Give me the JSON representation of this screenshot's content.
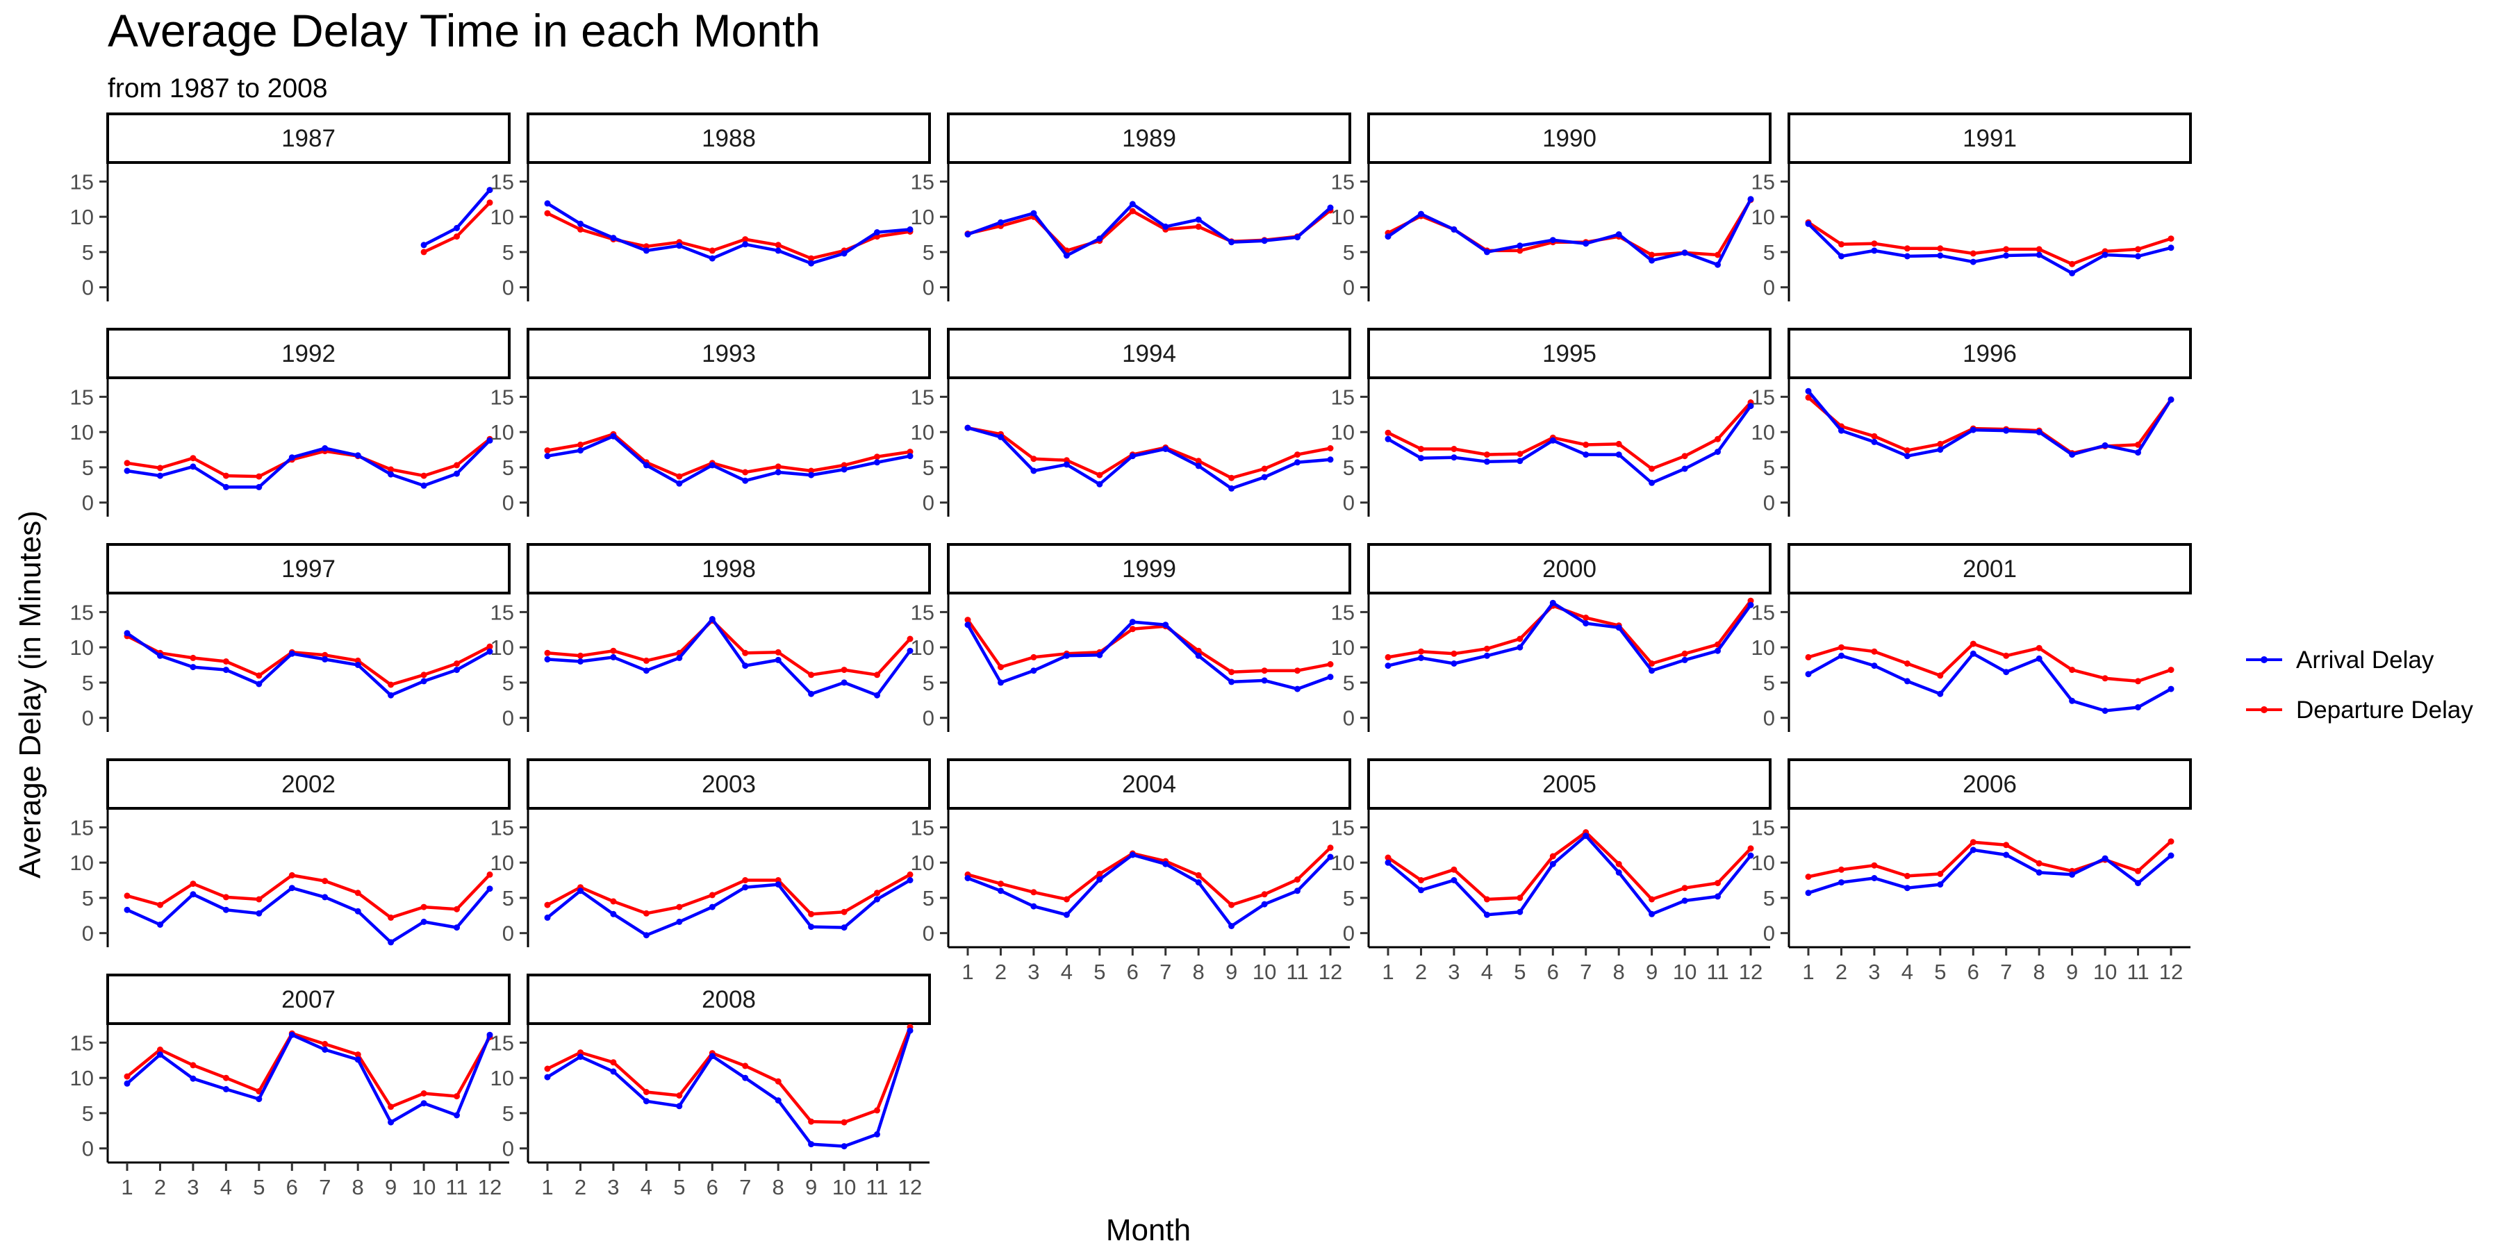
{
  "chart_data": {
    "type": "line",
    "title": "Average Delay Time in each Month",
    "subtitle": "from 1987 to 2008",
    "xlabel": "Month",
    "ylabel": "Average Delay (in Minutes)",
    "x": [
      1,
      2,
      3,
      4,
      5,
      6,
      7,
      8,
      9,
      10,
      11,
      12
    ],
    "ylim": [
      -2,
      17.5
    ],
    "yticks": [
      0,
      5,
      10,
      15
    ],
    "legend_position": "right",
    "grid": false,
    "series_colors": {
      "Arrival Delay": "#0000ff",
      "Departure Delay": "#ff0000"
    },
    "panels": [
      {
        "year": "1987",
        "series": [
          {
            "name": "Arrival Delay",
            "values": [
              null,
              null,
              null,
              null,
              null,
              null,
              null,
              null,
              null,
              6.0,
              8.4,
              13.8
            ]
          },
          {
            "name": "Departure Delay",
            "values": [
              null,
              null,
              null,
              null,
              null,
              null,
              null,
              null,
              null,
              5.0,
              7.2,
              12.0
            ]
          }
        ]
      },
      {
        "year": "1988",
        "series": [
          {
            "name": "Arrival Delay",
            "values": [
              11.9,
              9.0,
              7.0,
              5.2,
              5.9,
              4.1,
              6.1,
              5.2,
              3.4,
              4.8,
              7.8,
              8.2
            ]
          },
          {
            "name": "Departure Delay",
            "values": [
              10.5,
              8.2,
              6.8,
              5.8,
              6.4,
              5.2,
              6.8,
              6.0,
              4.1,
              5.2,
              7.2,
              7.9
            ]
          }
        ]
      },
      {
        "year": "1989",
        "series": [
          {
            "name": "Arrival Delay",
            "values": [
              7.5,
              9.2,
              10.5,
              4.5,
              6.9,
              11.8,
              8.6,
              9.6,
              6.4,
              6.6,
              7.1,
              11.3
            ]
          },
          {
            "name": "Departure Delay",
            "values": [
              7.6,
              8.7,
              10.0,
              5.2,
              6.6,
              10.8,
              8.2,
              8.6,
              6.5,
              6.7,
              7.2,
              10.9
            ]
          }
        ]
      },
      {
        "year": "1990",
        "series": [
          {
            "name": "Arrival Delay",
            "values": [
              7.2,
              10.4,
              8.2,
              5.0,
              5.9,
              6.7,
              6.2,
              7.5,
              3.8,
              4.9,
              3.2,
              12.5
            ]
          },
          {
            "name": "Departure Delay",
            "values": [
              7.7,
              10.1,
              8.2,
              5.2,
              5.2,
              6.4,
              6.4,
              7.2,
              4.6,
              4.9,
              4.6,
              12.4
            ]
          }
        ]
      },
      {
        "year": "1991",
        "series": [
          {
            "name": "Arrival Delay",
            "values": [
              9.0,
              4.4,
              5.2,
              4.4,
              4.5,
              3.6,
              4.5,
              4.6,
              2.0,
              4.6,
              4.4,
              5.6
            ]
          },
          {
            "name": "Departure Delay",
            "values": [
              9.2,
              6.1,
              6.2,
              5.5,
              5.5,
              4.8,
              5.4,
              5.4,
              3.3,
              5.1,
              5.4,
              6.9
            ]
          }
        ]
      },
      {
        "year": "1992",
        "series": [
          {
            "name": "Arrival Delay",
            "values": [
              4.5,
              3.8,
              5.1,
              2.2,
              2.2,
              6.4,
              7.7,
              6.7,
              4.0,
              2.4,
              4.1,
              8.8
            ]
          },
          {
            "name": "Departure Delay",
            "values": [
              5.6,
              4.9,
              6.3,
              3.8,
              3.7,
              6.1,
              7.3,
              6.6,
              4.7,
              3.8,
              5.3,
              9.0
            ]
          }
        ]
      },
      {
        "year": "1993",
        "series": [
          {
            "name": "Arrival Delay",
            "values": [
              6.6,
              7.4,
              9.4,
              5.3,
              2.7,
              5.3,
              3.1,
              4.3,
              3.9,
              4.7,
              5.7,
              6.6
            ]
          },
          {
            "name": "Departure Delay",
            "values": [
              7.4,
              8.2,
              9.7,
              5.7,
              3.7,
              5.6,
              4.3,
              5.1,
              4.5,
              5.3,
              6.5,
              7.2
            ]
          }
        ]
      },
      {
        "year": "1994",
        "series": [
          {
            "name": "Arrival Delay",
            "values": [
              10.6,
              9.3,
              4.5,
              5.4,
              2.6,
              6.6,
              7.6,
              5.2,
              2.0,
              3.6,
              5.7,
              6.1
            ]
          },
          {
            "name": "Departure Delay",
            "values": [
              10.6,
              9.7,
              6.2,
              6.0,
              3.9,
              6.8,
              7.8,
              5.9,
              3.5,
              4.8,
              6.8,
              7.7
            ]
          }
        ]
      },
      {
        "year": "1995",
        "series": [
          {
            "name": "Arrival Delay",
            "values": [
              9.0,
              6.3,
              6.4,
              5.8,
              5.9,
              8.8,
              6.8,
              6.8,
              2.8,
              4.8,
              7.2,
              13.7
            ]
          },
          {
            "name": "Departure Delay",
            "values": [
              9.9,
              7.6,
              7.6,
              6.8,
              6.9,
              9.2,
              8.2,
              8.3,
              4.8,
              6.6,
              9.0,
              14.2
            ]
          }
        ]
      },
      {
        "year": "1996",
        "series": [
          {
            "name": "Arrival Delay",
            "values": [
              15.8,
              10.2,
              8.6,
              6.6,
              7.5,
              10.3,
              10.2,
              10.0,
              6.8,
              8.1,
              7.1,
              14.6
            ]
          },
          {
            "name": "Departure Delay",
            "values": [
              14.9,
              10.8,
              9.4,
              7.4,
              8.3,
              10.5,
              10.4,
              10.2,
              7.0,
              8.0,
              8.2,
              14.6
            ]
          }
        ]
      },
      {
        "year": "1997",
        "series": [
          {
            "name": "Arrival Delay",
            "values": [
              12.0,
              8.8,
              7.2,
              6.8,
              4.8,
              9.1,
              8.3,
              7.5,
              3.2,
              5.2,
              6.8,
              9.4
            ]
          },
          {
            "name": "Departure Delay",
            "values": [
              11.6,
              9.2,
              8.5,
              8.0,
              6.0,
              9.3,
              8.9,
              8.1,
              4.7,
              6.1,
              7.7,
              10.1
            ]
          }
        ]
      },
      {
        "year": "1998",
        "series": [
          {
            "name": "Arrival Delay",
            "values": [
              8.3,
              8.0,
              8.6,
              6.7,
              8.5,
              14.0,
              7.4,
              8.2,
              3.4,
              5.0,
              3.2,
              9.5
            ]
          },
          {
            "name": "Departure Delay",
            "values": [
              9.2,
              8.8,
              9.5,
              8.1,
              9.2,
              13.8,
              9.2,
              9.3,
              6.1,
              6.8,
              6.1,
              11.2
            ]
          }
        ]
      },
      {
        "year": "1999",
        "series": [
          {
            "name": "Arrival Delay",
            "values": [
              13.2,
              5.0,
              6.7,
              8.8,
              8.9,
              13.6,
              13.2,
              8.8,
              5.1,
              5.3,
              4.1,
              5.8
            ]
          },
          {
            "name": "Departure Delay",
            "values": [
              13.9,
              7.2,
              8.6,
              9.1,
              9.3,
              12.6,
              13.0,
              9.5,
              6.5,
              6.7,
              6.7,
              7.6
            ]
          }
        ]
      },
      {
        "year": "2000",
        "series": [
          {
            "name": "Arrival Delay",
            "values": [
              7.4,
              8.5,
              7.7,
              8.8,
              10.0,
              16.3,
              13.4,
              12.8,
              6.7,
              8.2,
              9.5,
              16.0
            ]
          },
          {
            "name": "Departure Delay",
            "values": [
              8.6,
              9.4,
              9.1,
              9.8,
              11.2,
              15.9,
              14.2,
              13.1,
              7.7,
              9.1,
              10.4,
              16.6
            ]
          }
        ]
      },
      {
        "year": "2001",
        "series": [
          {
            "name": "Arrival Delay",
            "values": [
              6.2,
              8.8,
              7.4,
              5.2,
              3.4,
              9.1,
              6.5,
              8.4,
              2.4,
              1.0,
              1.5,
              4.1
            ]
          },
          {
            "name": "Departure Delay",
            "values": [
              8.6,
              10.0,
              9.4,
              7.7,
              6.0,
              10.5,
              8.8,
              9.9,
              6.8,
              5.6,
              5.2,
              6.8
            ]
          }
        ]
      },
      {
        "year": "2002",
        "series": [
          {
            "name": "Arrival Delay",
            "values": [
              3.3,
              1.2,
              5.5,
              3.3,
              2.8,
              6.4,
              5.1,
              3.1,
              -1.3,
              1.6,
              0.8,
              6.3
            ]
          },
          {
            "name": "Departure Delay",
            "values": [
              5.3,
              4.0,
              7.0,
              5.1,
              4.8,
              8.2,
              7.4,
              5.7,
              2.2,
              3.7,
              3.4,
              8.3
            ]
          }
        ]
      },
      {
        "year": "2003",
        "series": [
          {
            "name": "Arrival Delay",
            "values": [
              2.2,
              6.0,
              2.7,
              -0.3,
              1.6,
              3.7,
              6.5,
              6.9,
              0.9,
              0.8,
              4.8,
              7.5
            ]
          },
          {
            "name": "Departure Delay",
            "values": [
              4.0,
              6.5,
              4.5,
              2.8,
              3.7,
              5.4,
              7.5,
              7.5,
              2.7,
              3.0,
              5.7,
              8.3
            ]
          }
        ]
      },
      {
        "year": "2004",
        "series": [
          {
            "name": "Arrival Delay",
            "values": [
              7.8,
              6.0,
              3.8,
              2.6,
              7.6,
              11.1,
              9.8,
              7.2,
              1.0,
              4.1,
              6.0,
              10.8
            ]
          },
          {
            "name": "Departure Delay",
            "values": [
              8.3,
              7.0,
              5.8,
              4.8,
              8.4,
              11.3,
              10.2,
              8.2,
              4.0,
              5.5,
              7.6,
              12.1
            ]
          }
        ]
      },
      {
        "year": "2005",
        "series": [
          {
            "name": "Arrival Delay",
            "values": [
              10.0,
              6.1,
              7.5,
              2.6,
              3.0,
              9.8,
              13.8,
              8.6,
              2.7,
              4.6,
              5.2,
              11.0
            ]
          },
          {
            "name": "Departure Delay",
            "values": [
              10.7,
              7.5,
              9.0,
              4.8,
              5.0,
              10.9,
              14.3,
              9.8,
              4.8,
              6.4,
              7.1,
              12.0
            ]
          }
        ]
      },
      {
        "year": "2006",
        "series": [
          {
            "name": "Arrival Delay",
            "values": [
              5.7,
              7.2,
              7.8,
              6.4,
              6.9,
              11.8,
              11.1,
              8.6,
              8.3,
              10.6,
              7.1,
              11.0
            ]
          },
          {
            "name": "Departure Delay",
            "values": [
              8.0,
              9.0,
              9.6,
              8.1,
              8.4,
              12.9,
              12.5,
              9.9,
              8.8,
              10.4,
              8.8,
              13.0
            ]
          }
        ]
      },
      {
        "year": "2007",
        "series": [
          {
            "name": "Arrival Delay",
            "values": [
              9.2,
              13.3,
              9.9,
              8.4,
              7.0,
              16.1,
              14.0,
              12.6,
              3.7,
              6.4,
              4.7,
              16.1
            ]
          },
          {
            "name": "Departure Delay",
            "values": [
              10.2,
              14.0,
              11.8,
              10.0,
              8.1,
              16.3,
              14.8,
              13.3,
              5.9,
              7.8,
              7.4,
              15.8
            ]
          }
        ]
      },
      {
        "year": "2008",
        "series": [
          {
            "name": "Arrival Delay",
            "values": [
              10.1,
              13.0,
              10.9,
              6.7,
              6.0,
              13.1,
              10.0,
              6.8,
              0.6,
              0.3,
              2.0,
              16.7
            ]
          },
          {
            "name": "Departure Delay",
            "values": [
              11.3,
              13.6,
              12.2,
              8.0,
              7.5,
              13.5,
              11.7,
              9.5,
              3.8,
              3.7,
              5.4,
              17.2
            ]
          }
        ]
      }
    ]
  }
}
